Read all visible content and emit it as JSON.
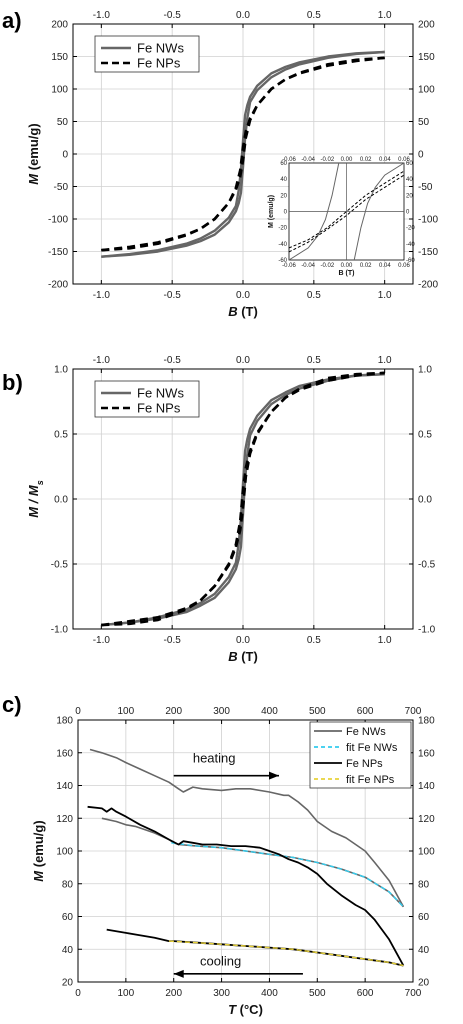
{
  "chart_data": [
    {
      "panel": "a)",
      "type": "line",
      "xlabel": "B",
      "xunit": " (T)",
      "ylabel": "M",
      "yunit": " (emu/g)",
      "xlim": [
        -1.2,
        1.2
      ],
      "ylim": [
        -200,
        200
      ],
      "xticks": [
        -1.0,
        -0.5,
        0.0,
        0.5,
        1.0
      ],
      "xtick_labels": [
        "-1.0",
        "-0.5",
        "0.0",
        "0.5",
        "1.0"
      ],
      "yticks": [
        -200,
        -150,
        -100,
        -50,
        0,
        50,
        100,
        150,
        200
      ],
      "ytick_labels": [
        "-200",
        "-150",
        "-100",
        "-50",
        "0",
        "50",
        "100",
        "150",
        "200"
      ],
      "grid": true,
      "legend_position": "top-left",
      "series": [
        {
          "name": "Fe NWs",
          "color": "#666666",
          "style": "solid",
          "upper": {
            "x": [
              -1.0,
              -0.8,
              -0.6,
              -0.4,
              -0.3,
              -0.2,
              -0.1,
              -0.05,
              -0.03,
              -0.015,
              0.0,
              0.015,
              0.03,
              0.05,
              0.1,
              0.2,
              0.3,
              0.4,
              0.6,
              0.8,
              1.0
            ],
            "y": [
              -158,
              -154,
              -148,
              -138,
              -130,
              -118,
              -98,
              -80,
              -55,
              -25,
              20,
              60,
              75,
              88,
              105,
              124,
              134,
              141,
              150,
              155,
              157
            ]
          },
          "lower": {
            "x": [
              -1.0,
              -0.8,
              -0.6,
              -0.4,
              -0.3,
              -0.2,
              -0.1,
              -0.05,
              -0.03,
              -0.015,
              0.0,
              0.015,
              0.03,
              0.05,
              0.1,
              0.2,
              0.3,
              0.4,
              0.6,
              0.8,
              1.0
            ],
            "y": [
              -158,
              -155,
              -150,
              -141,
              -134,
              -124,
              -105,
              -88,
              -75,
              -60,
              -20,
              25,
              55,
              80,
              98,
              118,
              130,
              138,
              148,
              154,
              157
            ]
          }
        },
        {
          "name": "Fe NPs",
          "color": "#000000",
          "style": "dashed",
          "upper": {
            "x": [
              -1.0,
              -0.8,
              -0.6,
              -0.4,
              -0.3,
              -0.2,
              -0.1,
              -0.05,
              -0.02,
              0.0,
              0.02,
              0.05,
              0.1,
              0.2,
              0.3,
              0.4,
              0.6,
              0.8,
              1.0
            ],
            "y": [
              -148,
              -143,
              -136,
              -124,
              -115,
              -100,
              -75,
              -52,
              -25,
              10,
              35,
              55,
              75,
              100,
              115,
              125,
              138,
              145,
              148
            ]
          },
          "lower": {
            "x": [
              -1.0,
              -0.8,
              -0.6,
              -0.4,
              -0.3,
              -0.2,
              -0.1,
              -0.05,
              -0.02,
              0.0,
              0.02,
              0.05,
              0.1,
              0.2,
              0.3,
              0.4,
              0.6,
              0.8,
              1.0
            ],
            "y": [
              -148,
              -145,
              -138,
              -125,
              -115,
              -100,
              -75,
              -55,
              -35,
              -10,
              25,
              52,
              75,
              100,
              115,
              124,
              136,
              143,
              148
            ]
          }
        }
      ],
      "inset": {
        "xlabel": "B (T)",
        "ylabel": "M (emu/g)",
        "xlim": [
          -0.06,
          0.06
        ],
        "ylim": [
          -60,
          60
        ],
        "xtick_labels": [
          "-0.06",
          "-0.04",
          "-0.02",
          "0.00",
          "0.02",
          "0.04",
          "0.06"
        ],
        "ytick_labels": [
          "-60",
          "-40",
          "-20",
          "0",
          "20",
          "40",
          "60"
        ],
        "series": [
          {
            "name": "Fe NWs",
            "style": "solid",
            "upper": {
              "x": [
                -0.06,
                -0.04,
                -0.03,
                -0.022,
                -0.015,
                -0.008
              ],
              "y": [
                -60,
                -45,
                -30,
                -10,
                20,
                60
              ]
            },
            "lower": {
              "x": [
                0.008,
                0.015,
                0.022,
                0.03,
                0.04,
                0.06
              ],
              "y": [
                -60,
                -20,
                10,
                30,
                45,
                60
              ]
            }
          },
          {
            "name": "Fe NPs",
            "style": "dashed",
            "upper": {
              "x": [
                -0.06,
                -0.04,
                -0.02,
                0.0,
                0.02,
                0.04,
                0.06
              ],
              "y": [
                -45,
                -35,
                -20,
                0,
                20,
                35,
                50
              ]
            },
            "lower": {
              "x": [
                -0.06,
                -0.04,
                -0.02,
                0.0,
                0.02,
                0.04,
                0.06
              ],
              "y": [
                -50,
                -38,
                -22,
                -5,
                15,
                30,
                45
              ]
            }
          }
        ]
      }
    },
    {
      "panel": "b)",
      "type": "line",
      "xlabel": "B",
      "xunit": " (T)",
      "ylabel": "M / M",
      "ysub": "s",
      "xlim": [
        -1.2,
        1.2
      ],
      "ylim": [
        -1.0,
        1.0
      ],
      "xticks": [
        -1.0,
        -0.5,
        0.0,
        0.5,
        1.0
      ],
      "xtick_labels": [
        "-1.0",
        "-0.5",
        "0.0",
        "0.5",
        "1.0"
      ],
      "yticks": [
        -1.0,
        -0.5,
        0.0,
        0.5,
        1.0
      ],
      "ytick_labels": [
        "-1.0",
        "-0.5",
        "0.0",
        "0.5",
        "1.0"
      ],
      "grid": true,
      "legend_position": "top-left",
      "series": [
        {
          "name": "Fe NWs",
          "color": "#666666",
          "style": "solid",
          "upper": {
            "x": [
              -1.0,
              -0.8,
              -0.6,
              -0.4,
              -0.3,
              -0.2,
              -0.1,
              -0.05,
              -0.03,
              -0.015,
              0.0,
              0.015,
              0.03,
              0.05,
              0.1,
              0.2,
              0.3,
              0.4,
              0.6,
              0.8,
              1.0
            ],
            "y": [
              -0.97,
              -0.95,
              -0.91,
              -0.85,
              -0.8,
              -0.73,
              -0.6,
              -0.49,
              -0.34,
              -0.15,
              0.12,
              0.37,
              0.46,
              0.54,
              0.64,
              0.76,
              0.82,
              0.87,
              0.92,
              0.95,
              0.96
            ]
          },
          "lower": {
            "x": [
              -1.0,
              -0.8,
              -0.6,
              -0.4,
              -0.3,
              -0.2,
              -0.1,
              -0.05,
              -0.03,
              -0.015,
              0.0,
              0.015,
              0.03,
              0.05,
              0.1,
              0.2,
              0.3,
              0.4,
              0.6,
              0.8,
              1.0
            ],
            "y": [
              -0.97,
              -0.95,
              -0.92,
              -0.87,
              -0.82,
              -0.76,
              -0.64,
              -0.54,
              -0.46,
              -0.37,
              -0.12,
              0.15,
              0.34,
              0.49,
              0.6,
              0.73,
              0.8,
              0.85,
              0.91,
              0.95,
              0.96
            ]
          }
        },
        {
          "name": "Fe NPs",
          "color": "#000000",
          "style": "dashed",
          "upper": {
            "x": [
              -1.0,
              -0.8,
              -0.6,
              -0.4,
              -0.3,
              -0.2,
              -0.1,
              -0.05,
              -0.02,
              0.0,
              0.02,
              0.05,
              0.1,
              0.2,
              0.3,
              0.4,
              0.6,
              0.8,
              1.0
            ],
            "y": [
              -0.97,
              -0.94,
              -0.91,
              -0.84,
              -0.78,
              -0.67,
              -0.5,
              -0.35,
              -0.17,
              0.07,
              0.24,
              0.37,
              0.51,
              0.67,
              0.78,
              0.85,
              0.93,
              0.96,
              0.97
            ]
          },
          "lower": {
            "x": [
              -1.0,
              -0.8,
              -0.6,
              -0.4,
              -0.3,
              -0.2,
              -0.1,
              -0.05,
              -0.02,
              0.0,
              0.02,
              0.05,
              0.1,
              0.2,
              0.3,
              0.4,
              0.6,
              0.8,
              1.0
            ],
            "y": [
              -0.97,
              -0.96,
              -0.93,
              -0.85,
              -0.78,
              -0.67,
              -0.51,
              -0.37,
              -0.24,
              -0.07,
              0.17,
              0.35,
              0.5,
              0.67,
              0.78,
              0.84,
              0.91,
              0.95,
              0.97
            ]
          }
        }
      ]
    },
    {
      "panel": "c)",
      "type": "line",
      "xlabel": "T",
      "xunit": " (°C)",
      "ylabel": "M",
      "yunit": " (emu/g)",
      "xlim": [
        0,
        700
      ],
      "ylim": [
        20,
        180
      ],
      "xticks": [
        0,
        100,
        200,
        300,
        400,
        500,
        600,
        700
      ],
      "xtick_labels": [
        "0",
        "100",
        "200",
        "300",
        "400",
        "500",
        "600",
        "700"
      ],
      "top_xticks": [
        0,
        100,
        200,
        300,
        400,
        500,
        600,
        700
      ],
      "top_xtick_labels": [
        "0",
        "100",
        "200",
        "300",
        "400",
        "500",
        "600",
        "700"
      ],
      "yticks": [
        20,
        40,
        60,
        80,
        100,
        120,
        140,
        160,
        180
      ],
      "ytick_labels": [
        "20",
        "40",
        "60",
        "80",
        "100",
        "120",
        "140",
        "160",
        "180"
      ],
      "grid": true,
      "legend_position": "top-right",
      "annotations": [
        {
          "text": "heating",
          "x": 240,
          "y": 154,
          "arrow_from": 200,
          "arrow_to": 420,
          "arrow_y": 146
        },
        {
          "text": "cooling",
          "x": 255,
          "y": 30,
          "arrow_from": 470,
          "arrow_to": 200,
          "arrow_y": 25
        }
      ],
      "series": [
        {
          "name": "Fe NWs",
          "color": "#666666",
          "style": "solid",
          "width": 1.6,
          "segments": [
            {
              "x": [
                25,
                50,
                80,
                100,
                130,
                160,
                190,
                210,
                220,
                240,
                260,
                300,
                330,
                360,
                400,
                430,
                440,
                460,
                480,
                500,
                530,
                560,
                600,
                620,
                650,
                680
              ],
              "y": [
                162,
                160,
                157,
                154,
                150,
                146,
                142,
                138,
                136,
                139,
                138,
                137,
                138,
                138,
                136,
                134,
                134,
                130,
                125,
                118,
                112,
                108,
                100,
                93,
                82,
                66
              ]
            },
            {
              "x": [
                680,
                650,
                600,
                550,
                500,
                450,
                400,
                350,
                300,
                250,
                210,
                200,
                190,
                160,
                120,
                100,
                80,
                50
              ],
              "y": [
                66,
                75,
                84,
                89,
                93,
                96,
                98,
                100,
                102,
                103,
                104,
                105,
                107,
                111,
                115,
                116,
                118,
                120
              ]
            }
          ]
        },
        {
          "name": "fit Fe NWs",
          "color": "#33ccee",
          "style": "dashed",
          "width": 1.4,
          "segments": [
            {
              "x": [
                195,
                250,
                300,
                350,
                400,
                450,
                500,
                550,
                600,
                650,
                680
              ],
              "y": [
                105,
                103,
                102,
                100,
                98,
                96,
                93,
                89,
                84,
                75,
                66
              ]
            }
          ]
        },
        {
          "name": "Fe NPs",
          "color": "#000000",
          "style": "solid",
          "width": 1.8,
          "segments": [
            {
              "x": [
                20,
                50,
                60,
                70,
                80,
                100,
                130,
                160,
                190,
                210,
                220,
                240,
                260,
                290,
                320,
                350,
                380,
                400,
                420,
                440,
                460,
                480,
                500,
                520,
                550,
                580,
                600,
                620,
                650,
                680
              ],
              "y": [
                127,
                126,
                124,
                126,
                124,
                121,
                116,
                112,
                107,
                104,
                106,
                105,
                104,
                104,
                103,
                103,
                102,
                100,
                98,
                95,
                93,
                90,
                86,
                80,
                73,
                67,
                64,
                58,
                46,
                30
              ]
            },
            {
              "x": [
                680,
                650,
                600,
                550,
                500,
                450,
                400,
                350,
                300,
                250,
                200,
                190,
                160,
                120,
                100,
                80,
                60
              ],
              "y": [
                30,
                32,
                34,
                36,
                38,
                40,
                41,
                42,
                43,
                44,
                45,
                45,
                47,
                49,
                50,
                51,
                52
              ]
            }
          ]
        },
        {
          "name": "fit Fe NPs",
          "color": "#e8d23a",
          "style": "dashed",
          "width": 1.4,
          "segments": [
            {
              "x": [
                190,
                250,
                300,
                350,
                400,
                450,
                500,
                550,
                600,
                650,
                680
              ],
              "y": [
                45,
                44,
                43,
                42,
                41,
                40,
                38,
                36,
                34,
                32,
                30
              ]
            }
          ]
        }
      ]
    }
  ]
}
